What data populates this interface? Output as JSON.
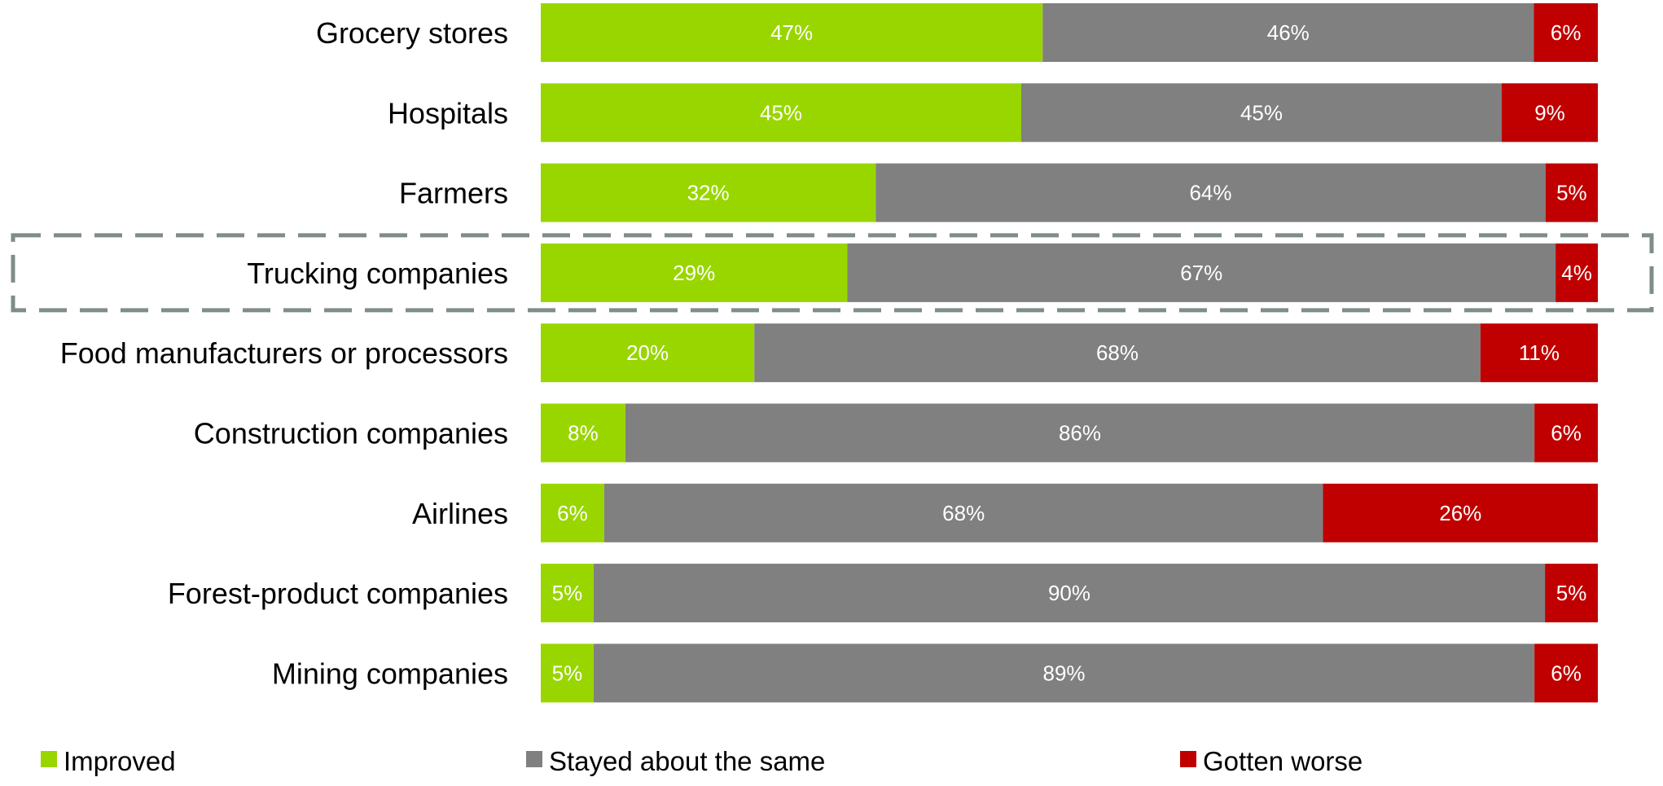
{
  "chart_data": {
    "type": "bar",
    "orientation": "horizontal",
    "stacked": true,
    "categories": [
      "Grocery stores",
      "Hospitals",
      "Farmers",
      "Trucking companies",
      "Food manufacturers or processors",
      "Construction companies",
      "Airlines",
      "Forest-product companies",
      "Mining companies"
    ],
    "series": [
      {
        "name": "Improved",
        "color": "#99d600",
        "values": [
          47,
          45,
          32,
          29,
          20,
          8,
          6,
          5,
          5
        ]
      },
      {
        "name": "Stayed about the same",
        "color": "#808080",
        "values": [
          46,
          45,
          64,
          67,
          68,
          86,
          68,
          90,
          89
        ]
      },
      {
        "name": "Gotten worse",
        "color": "#c00000",
        "values": [
          6,
          9,
          5,
          4,
          11,
          6,
          26,
          5,
          6
        ]
      }
    ],
    "value_suffix": "%",
    "highlighted_category": "Trucking companies",
    "legend_position": "bottom",
    "grid": false,
    "title": "",
    "xlabel": "",
    "ylabel": ""
  }
}
